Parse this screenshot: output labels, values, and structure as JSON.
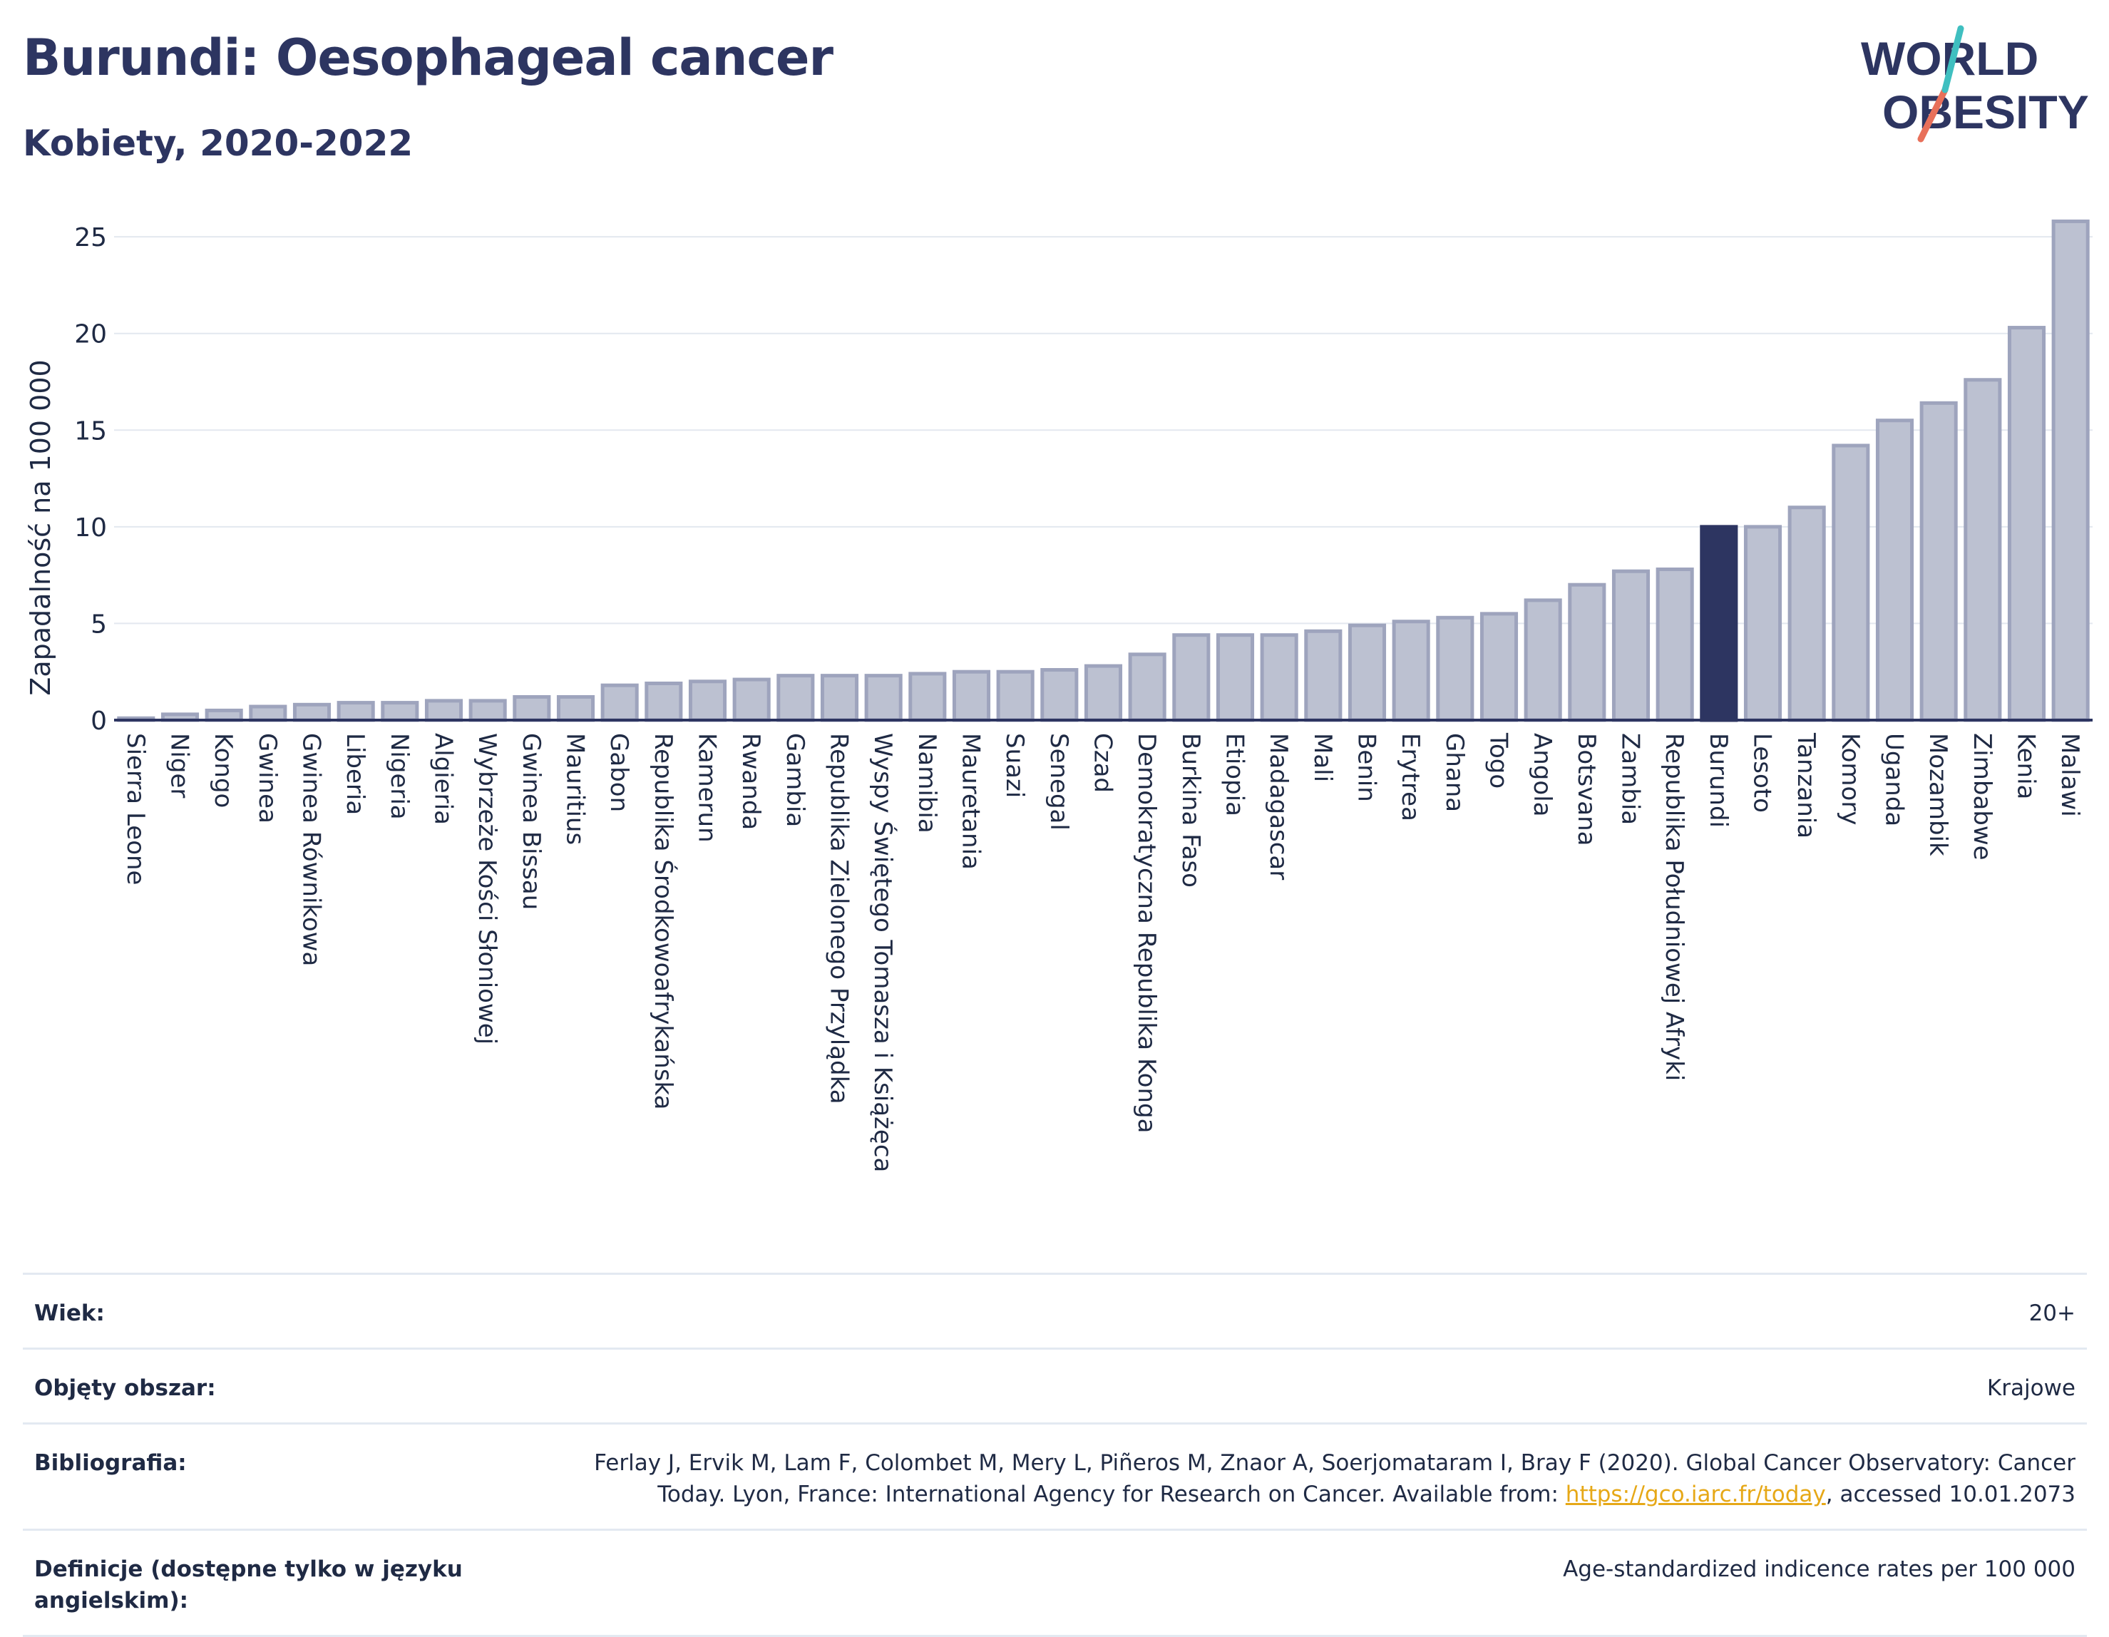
{
  "header": {
    "title": "Burundi: Oesophageal cancer",
    "subtitle": "Kobiety, 2020-2022"
  },
  "logo": {
    "line1": "WORLD",
    "line2": "OBESITY"
  },
  "chart_data": {
    "type": "bar",
    "ylabel": "Zapadalność na 100 000",
    "ylim": [
      0,
      26
    ],
    "yticks": [
      0,
      5,
      10,
      15,
      20,
      25
    ],
    "grid": true,
    "highlight": "Burundi",
    "colors": {
      "bar": "#bcc1d1",
      "bar_border": "#9ea4bd",
      "highlight": "#2d3561",
      "grid": "#e3e8ef",
      "axis": "#2d3561"
    },
    "categories": [
      "Sierra Leone",
      "Niger",
      "Kongo",
      "Gwinea",
      "Gwinea Równikowa",
      "Liberia",
      "Nigeria",
      "Algieria",
      "Wybrzeże Kości Słoniowej",
      "Gwinea Bissau",
      "Mauritius",
      "Gabon",
      "Republika Środkowoafrykańska",
      "Kamerun",
      "Rwanda",
      "Gambia",
      "Republika Zielonego Przylądka",
      "Wyspy Świętego Tomasza i Książęca",
      "Namibia",
      "Mauretania",
      "Suazi",
      "Senegal",
      "Czad",
      "Demokratyczna Republika Konga",
      "Burkina Faso",
      "Etiopia",
      "Madagascar",
      "Mali",
      "Benin",
      "Erytrea",
      "Ghana",
      "Togo",
      "Angola",
      "Botsvana",
      "Zambia",
      "Republika Południowej Afryki",
      "Burundi",
      "Lesoto",
      "Tanzania",
      "Komory",
      "Uganda",
      "Mozambik",
      "Zimbabwe",
      "Kenia",
      "Malawi"
    ],
    "values": [
      0.1,
      0.3,
      0.5,
      0.7,
      0.8,
      0.9,
      0.9,
      1.0,
      1.0,
      1.2,
      1.2,
      1.8,
      1.9,
      2.0,
      2.1,
      2.3,
      2.3,
      2.3,
      2.4,
      2.5,
      2.5,
      2.6,
      2.8,
      3.4,
      4.4,
      4.4,
      4.4,
      4.6,
      4.9,
      5.1,
      5.3,
      5.5,
      6.2,
      7.0,
      7.7,
      7.8,
      10.0,
      10.0,
      11.0,
      14.2,
      15.5,
      16.4,
      17.6,
      20.3,
      25.8
    ]
  },
  "meta": [
    {
      "label": "Wiek:",
      "value": "20+"
    },
    {
      "label": "Objęty obszar:",
      "value": "Krajowe"
    },
    {
      "label": "Bibliografia:",
      "value_line1": "Ferlay J, Ervik M, Lam F, Colombet M, Mery L, Piñeros M, Znaor A, Soerjomataram I, Bray F (2020). Global Cancer Observatory: Cancer",
      "value_line2_pre": "Today. Lyon, France: International Agency for Research on Cancer. Available from: ",
      "link": "https://gco.iarc.fr/today",
      "value_line2_post": ", accessed 10.01.2073"
    },
    {
      "label": "Definicje (dostępne tylko w języku angielskim):",
      "value": "Age-standardized indicence rates per 100 000"
    }
  ]
}
